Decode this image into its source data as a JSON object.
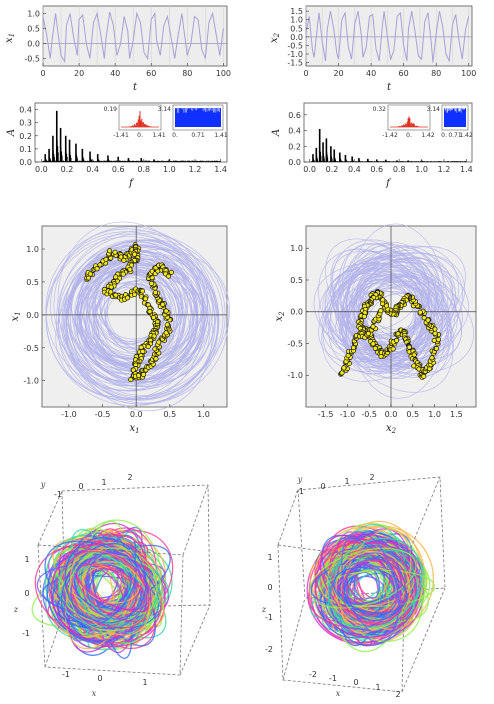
{
  "chart_data": [
    {
      "id": "ts1",
      "type": "line",
      "xlabel": "t",
      "ylabel": "x1",
      "xlim": [
        0,
        102
      ],
      "ylim": [
        -0.75,
        1.25
      ],
      "x_ticks": [
        "0",
        "20",
        "40",
        "60",
        "80",
        "100"
      ],
      "y_ticks": [
        "1.0",
        "0.5",
        "0.0",
        "-0.5"
      ],
      "series": [
        {
          "color": "#a99fd6",
          "x": [
            0,
            2,
            4,
            5,
            7,
            8,
            10,
            12,
            13,
            15,
            17,
            19,
            20,
            22,
            24,
            26,
            28,
            30,
            32,
            34,
            35,
            37,
            39,
            41,
            43,
            45,
            47,
            48,
            50,
            52,
            54,
            56,
            58,
            60,
            62,
            63,
            65,
            67,
            69,
            71,
            73,
            75,
            77,
            78,
            80,
            82,
            84,
            86,
            88,
            90,
            92,
            94,
            96,
            98,
            100
          ],
          "y": [
            0.9,
            0.3,
            -0.5,
            0.1,
            1.0,
            0.5,
            -0.4,
            -0.6,
            0.6,
            1.0,
            0.2,
            -0.4,
            0.8,
            0.95,
            0.0,
            -0.5,
            0.7,
            1.0,
            0.3,
            -0.5,
            0.2,
            1.05,
            0.6,
            -0.4,
            0.0,
            0.9,
            0.4,
            -0.5,
            0.1,
            1.0,
            0.7,
            -0.3,
            -0.5,
            0.8,
            1.0,
            0.1,
            -0.4,
            0.6,
            0.9,
            0.2,
            -0.5,
            0.3,
            1.0,
            0.5,
            -0.4,
            0.0,
            0.9,
            0.8,
            -0.2,
            -0.5,
            0.7,
            1.0,
            0.3,
            -0.4,
            0.5
          ]
        }
      ]
    },
    {
      "id": "ts2",
      "type": "line",
      "xlabel": "t",
      "ylabel": "x2",
      "xlim": [
        0,
        102
      ],
      "ylim": [
        -1.7,
        1.8
      ],
      "x_ticks": [
        "0",
        "20",
        "40",
        "60",
        "80",
        "100"
      ],
      "y_ticks": [
        "1.5",
        "1.0",
        "0.5",
        "0.0",
        "-0.5",
        "-1.0",
        "-1.5"
      ],
      "series": [
        {
          "color": "#a99fd6",
          "x": [
            0,
            2,
            4,
            5,
            7,
            8,
            10,
            12,
            13,
            15,
            17,
            19,
            20,
            22,
            24,
            26,
            28,
            30,
            32,
            34,
            35,
            37,
            39,
            41,
            43,
            45,
            47,
            48,
            50,
            52,
            54,
            56,
            58,
            60,
            62,
            63,
            65,
            67,
            69,
            71,
            73,
            75,
            77,
            78,
            80,
            82,
            84,
            86,
            88,
            90,
            92,
            94,
            96,
            98,
            100
          ],
          "y": [
            0.2,
            1.2,
            -0.8,
            -1.2,
            0.6,
            1.4,
            -0.3,
            -1.4,
            0.4,
            1.5,
            0.5,
            -1.0,
            -1.3,
            1.0,
            1.4,
            -0.6,
            -1.3,
            0.8,
            1.5,
            0.1,
            -1.2,
            -0.6,
            1.2,
            1.3,
            -0.7,
            -1.4,
            0.7,
            1.5,
            0.0,
            -1.3,
            -0.8,
            1.2,
            1.4,
            -0.5,
            -1.4,
            0.5,
            1.5,
            0.3,
            -1.1,
            -1.3,
            0.9,
            1.4,
            -0.4,
            -1.5,
            0.2,
            1.5,
            0.6,
            -1.0,
            -1.4,
            0.7,
            1.3,
            -0.2,
            -1.3,
            0.4,
            1.2
          ]
        }
      ]
    },
    {
      "id": "sp1",
      "type": "bar",
      "xlabel": "f",
      "ylabel": "A",
      "xlim": [
        -0.05,
        1.45
      ],
      "ylim": [
        0,
        0.45
      ],
      "x_ticks": [
        "0.0",
        "0.2",
        "0.4",
        "0.6",
        "0.8",
        "1.0",
        "1.2",
        "1.4"
      ],
      "y_ticks": [
        "0.4",
        "0.3",
        "0.2",
        "0.1",
        "0.0"
      ],
      "x": [
        0.03,
        0.06,
        0.09,
        0.12,
        0.15,
        0.19,
        0.22,
        0.27,
        0.32,
        0.38,
        0.44,
        0.52,
        0.6,
        0.68,
        0.78,
        0.88,
        1.0
      ],
      "values": [
        0.06,
        0.1,
        0.2,
        0.39,
        0.26,
        0.2,
        0.17,
        0.14,
        0.1,
        0.08,
        0.06,
        0.05,
        0.04,
        0.03,
        0.03,
        0.02,
        0.02
      ],
      "insets": [
        {
          "type": "histogram",
          "color": "#e03020",
          "ymax": "0.19",
          "x_ticks": [
            "-1.41",
            "0.",
            "1.41"
          ]
        },
        {
          "type": "density",
          "color": "#1030ff",
          "ymax": "3.14",
          "x_ticks": [
            "0.",
            "0.71",
            "1.41"
          ]
        }
      ]
    },
    {
      "id": "sp2",
      "type": "bar",
      "xlabel": "f",
      "ylabel": "A",
      "xlim": [
        -0.05,
        1.45
      ],
      "ylim": [
        0,
        0.75
      ],
      "x_ticks": [
        "0.0",
        "0.2",
        "0.4",
        "0.6",
        "0.8",
        "1.0",
        "1.2",
        "1.4"
      ],
      "y_ticks": [
        "0.6",
        "0.4",
        "0.2",
        "0.0"
      ],
      "x": [
        0.03,
        0.06,
        0.09,
        0.12,
        0.15,
        0.19,
        0.22,
        0.27,
        0.32,
        0.38,
        0.44,
        0.52,
        0.6,
        0.68,
        0.78,
        0.88,
        1.0
      ],
      "values": [
        0.1,
        0.18,
        0.42,
        0.25,
        0.3,
        0.2,
        0.16,
        0.12,
        0.09,
        0.07,
        0.05,
        0.04,
        0.03,
        0.03,
        0.02,
        0.02,
        0.02
      ],
      "insets": [
        {
          "type": "histogram",
          "color": "#e03020",
          "ymax": "0.32",
          "x_ticks": [
            "-1.42",
            "0.",
            "1.42"
          ]
        },
        {
          "type": "density",
          "color": "#1030ff",
          "ymax": "3.14",
          "x_ticks": [
            "0.",
            "0.71",
            "1.42"
          ]
        }
      ]
    },
    {
      "id": "ph1",
      "type": "scatter",
      "xlabel": "x1",
      "ylabel": "x1",
      "xlim": [
        -1.4,
        1.35
      ],
      "ylim": [
        -1.4,
        1.35
      ],
      "x_ticks": [
        "-1.0",
        "-0.5",
        "0.0",
        "0.5",
        "1.0"
      ],
      "y_ticks": [
        "1.0",
        "0.5",
        "0.0",
        "-0.5",
        "-1.0"
      ],
      "orbit_color": "#b3b3ec",
      "point_color": "#f5e81a",
      "edge_color": "#111111",
      "attractor": {
        "x": [
          -0.75,
          -0.55,
          -0.35,
          -0.15,
          0.02,
          0.0,
          -0.1,
          -0.3,
          -0.45,
          -0.2,
          0.05,
          0.2,
          0.3,
          0.25,
          0.1,
          0.0,
          -0.05,
          0.1,
          0.25,
          0.35,
          0.5,
          0.45,
          0.3,
          0.2,
          0.35,
          0.5
        ],
        "y": [
          0.55,
          0.75,
          0.95,
          0.85,
          1.05,
          0.9,
          0.7,
          0.55,
          0.35,
          0.25,
          0.4,
          0.1,
          -0.1,
          -0.35,
          -0.5,
          -0.75,
          -0.95,
          -0.9,
          -0.7,
          -0.4,
          -0.2,
          0.05,
          0.3,
          0.55,
          0.75,
          0.6
        ]
      }
    },
    {
      "id": "ph2",
      "type": "scatter",
      "xlabel": "x2",
      "ylabel": "x2",
      "xlim": [
        -1.95,
        1.95
      ],
      "ylim": [
        -1.5,
        1.35
      ],
      "x_ticks": [
        "-1.5",
        "-1.0",
        "-0.5",
        "0.0",
        "0.5",
        "1.0",
        "1.5"
      ],
      "y_ticks": [
        "1.0",
        "0.5",
        "0.0",
        "-0.5",
        "-1.0"
      ],
      "orbit_color": "#b3b3ec",
      "point_color": "#f5e81a",
      "edge_color": "#111111",
      "attractor": {
        "x": [
          -1.1,
          -0.95,
          -0.8,
          -0.6,
          -0.4,
          -0.2,
          0.0,
          0.25,
          0.4,
          0.55,
          0.75,
          0.95,
          1.05,
          0.85,
          0.6,
          0.4,
          0.2,
          0.05,
          -0.15,
          -0.3,
          -0.45,
          -0.6,
          -0.7,
          -0.6,
          -0.4,
          -0.2
        ],
        "y": [
          -1.0,
          -0.7,
          -0.4,
          -0.3,
          -0.5,
          -0.7,
          -0.55,
          -0.3,
          -0.5,
          -0.8,
          -1.0,
          -0.8,
          -0.4,
          -0.15,
          0.1,
          0.25,
          0.1,
          -0.05,
          0.1,
          0.3,
          0.2,
          0.05,
          -0.2,
          -0.4,
          -0.25,
          0.0
        ]
      }
    },
    {
      "id": "cube1",
      "type": "3d-line",
      "xlabel": "x",
      "ylabel": "y",
      "zlabel": "z",
      "x_ticks": [
        "-1",
        "0",
        "1"
      ],
      "y_ticks": [
        "-1",
        "0",
        "1",
        "2"
      ],
      "z_ticks": [
        "1",
        "0",
        "-1"
      ],
      "colors": [
        "#2f6cff",
        "#c92fd6",
        "#37d6a8",
        "#8ef04a",
        "#ffb44a",
        "#ff3a8c",
        "#6b5cff"
      ]
    },
    {
      "id": "cube2",
      "type": "3d-line",
      "xlabel": "x",
      "ylabel": "y",
      "zlabel": "z",
      "x_ticks": [
        "-2",
        "-1",
        "0",
        "1",
        "2"
      ],
      "y_ticks": [
        "-1",
        "0",
        "1",
        "2"
      ],
      "z_ticks": [
        "1",
        "0",
        "-1",
        "-2"
      ],
      "colors": [
        "#2f6cff",
        "#c92fd6",
        "#37d6a8",
        "#8ef04a",
        "#ffb44a",
        "#ff3a8c",
        "#6b5cff"
      ]
    }
  ]
}
